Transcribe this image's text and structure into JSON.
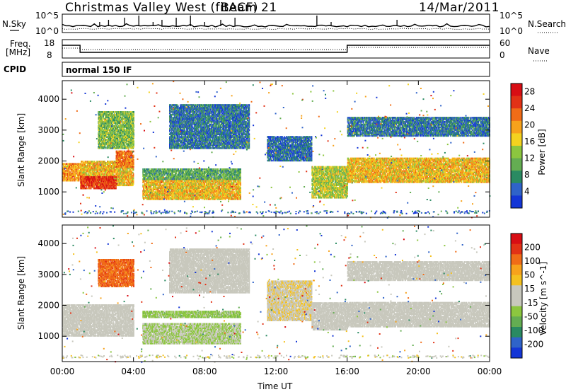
{
  "header": {
    "station": "Christmas Valley West (fitACF)",
    "beam": "Beam 21",
    "date": "14/Mar/2011"
  },
  "panels": {
    "noise": {
      "left_label": "N.Sky",
      "right_label": "N.Search",
      "left_ticks": [
        "10^5",
        "10^0"
      ],
      "right_ticks": [
        "10^5",
        "10^0"
      ]
    },
    "freq": {
      "left_label_1": "Freq.",
      "left_label_2": "[MHz]",
      "right_label": "Nave",
      "left_ticks": [
        "18",
        "8"
      ],
      "right_ticks": [
        "60",
        "0"
      ]
    },
    "cpid": {
      "label": "CPID",
      "mode": "normal 150 IF"
    }
  },
  "chart_data": [
    {
      "type": "heatmap",
      "title": "Power",
      "xlabel": "Time UT",
      "ylabel": "Slant Range [km]",
      "xlim": [
        "00:00",
        "24:00"
      ],
      "ylim": [
        180,
        4600
      ],
      "x_ticks": [
        "00:00",
        "04:00",
        "08:00",
        "12:00",
        "16:00",
        "20:00",
        "00:00"
      ],
      "y_ticks": [
        "1000",
        "2000",
        "3000",
        "4000"
      ],
      "colorbar": {
        "label": "Power [dB]",
        "range": [
          0,
          30
        ],
        "ticks": [
          "4",
          "8",
          "12",
          "16",
          "20",
          "24",
          "28"
        ],
        "colors": [
          "#1436d6",
          "#2f63c9",
          "#2a8a62",
          "#64ad52",
          "#8cc63f",
          "#f4d21f",
          "#f7a21b",
          "#f06c17",
          "#e23216",
          "#d80e14"
        ]
      },
      "regions": [
        {
          "t": [
            0.0,
            1.0
          ],
          "r": [
            1350,
            1900
          ],
          "value": 20
        },
        {
          "t": [
            1.0,
            4.0
          ],
          "r": [
            1200,
            2000
          ],
          "value": 18
        },
        {
          "t": [
            1.0,
            3.0
          ],
          "r": [
            1100,
            1500
          ],
          "value": 26
        },
        {
          "t": [
            2.0,
            4.0
          ],
          "r": [
            2400,
            3600
          ],
          "value": 12
        },
        {
          "t": [
            3.0,
            4.0
          ],
          "r": [
            1800,
            2300
          ],
          "value": 22
        },
        {
          "t": [
            4.5,
            10.0
          ],
          "r": [
            750,
            1400
          ],
          "value": 18
        },
        {
          "t": [
            4.5,
            10.0
          ],
          "r": [
            1400,
            1750
          ],
          "value": 10
        },
        {
          "t": [
            6.0,
            10.5
          ],
          "r": [
            2400,
            3800
          ],
          "value": 6
        },
        {
          "t": [
            11.5,
            14.0
          ],
          "r": [
            2000,
            2800
          ],
          "value": 5
        },
        {
          "t": [
            14.0,
            16.0
          ],
          "r": [
            800,
            1800
          ],
          "value": 14
        },
        {
          "t": [
            16.0,
            24.0
          ],
          "r": [
            1300,
            2100
          ],
          "value": 18
        },
        {
          "t": [
            16.0,
            24.0
          ],
          "r": [
            2800,
            3400
          ],
          "value": 6
        }
      ]
    },
    {
      "type": "heatmap",
      "title": "Velocity",
      "xlabel": "Time UT",
      "ylabel": "Slant Range [km]",
      "xlim": [
        "00:00",
        "24:00"
      ],
      "ylim": [
        180,
        4600
      ],
      "x_ticks": [
        "00:00",
        "04:00",
        "08:00",
        "12:00",
        "16:00",
        "20:00",
        "00:00"
      ],
      "y_ticks": [
        "1000",
        "2000",
        "3000",
        "4000"
      ],
      "colorbar": {
        "label": "Velocity [m s^-1]",
        "range": [
          -250,
          250
        ],
        "ticks": [
          "200",
          "100",
          "50",
          "15",
          "-15",
          "-50",
          "-100",
          "-200"
        ],
        "colors": [
          "#1436d6",
          "#2f63c9",
          "#2a8a62",
          "#64ad52",
          "#8cc63f",
          "#c8c8bd",
          "#c8c8bd",
          "#f4c11f",
          "#f7a21b",
          "#f06c17",
          "#e23216",
          "#d80e14"
        ]
      },
      "regions": [
        {
          "t": [
            0.0,
            4.0
          ],
          "r": [
            1000,
            2000
          ],
          "value": 0
        },
        {
          "t": [
            2.0,
            4.0
          ],
          "r": [
            2600,
            3500
          ],
          "value": 150
        },
        {
          "t": [
            4.5,
            10.0
          ],
          "r": [
            750,
            1400
          ],
          "value": -40
        },
        {
          "t": [
            4.5,
            10.0
          ],
          "r": [
            1600,
            1800
          ],
          "value": -60
        },
        {
          "t": [
            6.0,
            10.5
          ],
          "r": [
            2400,
            3800
          ],
          "value": 0
        },
        {
          "t": [
            11.5,
            14.0
          ],
          "r": [
            1500,
            2800
          ],
          "value": 30
        },
        {
          "t": [
            14.0,
            16.0
          ],
          "r": [
            1200,
            2100
          ],
          "value": 0
        },
        {
          "t": [
            16.0,
            24.0
          ],
          "r": [
            1300,
            2100
          ],
          "value": 0
        },
        {
          "t": [
            16.0,
            24.0
          ],
          "r": [
            2800,
            3400
          ],
          "value": 0
        }
      ]
    }
  ]
}
